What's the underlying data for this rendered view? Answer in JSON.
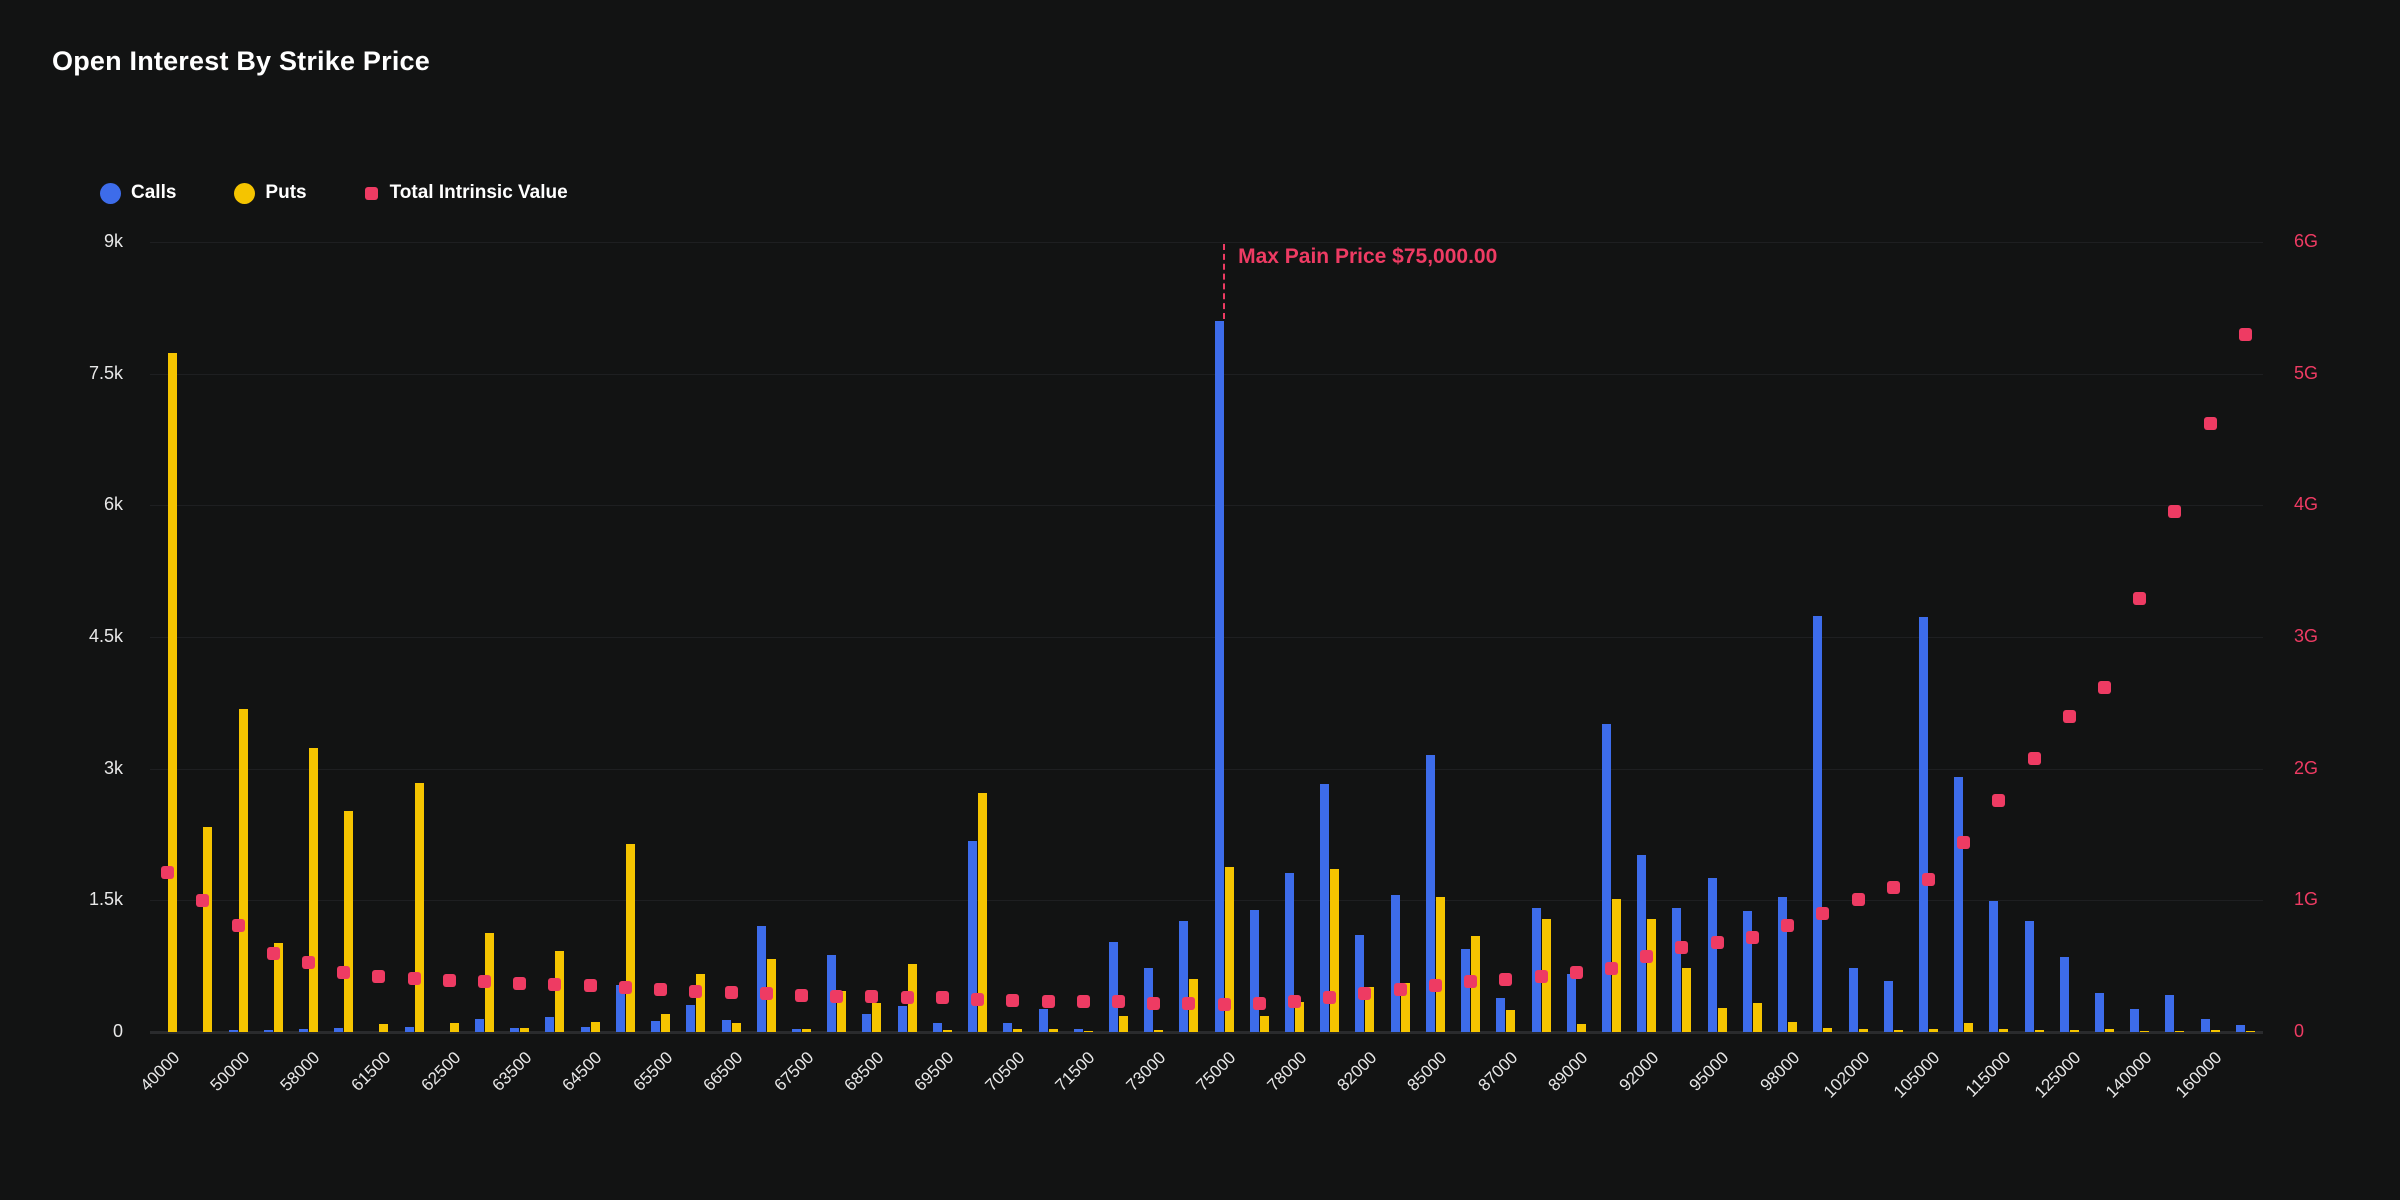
{
  "title": "Open Interest By Strike Price",
  "legend": {
    "calls": "Calls",
    "puts": "Puts",
    "intrinsic": "Total Intrinsic Value"
  },
  "colors": {
    "background": "#121313",
    "calls": "#3d6cea",
    "puts": "#f5c400",
    "intrinsic": "#ee3b63",
    "gridline": "#1e1f21",
    "axis_text": "#e8e8e8"
  },
  "annotation": {
    "max_pain_label": "Max Pain Price $75,000.00",
    "max_pain_category_index": 30
  },
  "chart_data": {
    "type": "bar",
    "title": "Open Interest By Strike Price",
    "left_axis_ticks": [
      "9k",
      "7.5k",
      "6k",
      "4.5k",
      "3k",
      "1.5k",
      "0"
    ],
    "right_axis_ticks": [
      "6G",
      "5G",
      "4G",
      "3G",
      "2G",
      "1G",
      "0"
    ],
    "left_axis_max_k": 9,
    "right_axis_max_G": 6,
    "grid": true,
    "legend_position": "top-left",
    "x_labels_shown_every_other_category": true,
    "categories": [
      "40000",
      "",
      "50000",
      "",
      "58000",
      "",
      "61500",
      "",
      "62500",
      "",
      "63500",
      "",
      "64500",
      "",
      "65500",
      "",
      "66500",
      "",
      "67500",
      "",
      "68500",
      "",
      "69500",
      "",
      "70500",
      "",
      "71500",
      "",
      "73000",
      "",
      "75000",
      "",
      "78000",
      "",
      "82000",
      "",
      "85000",
      "",
      "87000",
      "",
      "89000",
      "",
      "92000",
      "",
      "95000",
      "",
      "98000",
      "",
      "102000",
      "",
      "105000",
      "",
      "115000",
      "",
      "125000",
      "",
      "140000",
      "",
      "160000",
      ""
    ],
    "series": [
      {
        "name": "Calls",
        "type": "bar",
        "unit": "k (left axis, thousands of contracts)",
        "values": [
          0,
          0,
          0.02,
          0.02,
          0.03,
          0.05,
          0,
          0.06,
          0,
          0.15,
          0.05,
          0.17,
          0.06,
          0.54,
          0.12,
          0.31,
          0.14,
          1.21,
          0.04,
          0.88,
          0.21,
          0.3,
          0.1,
          2.18,
          0.1,
          0.26,
          0.03,
          1.02,
          0.73,
          1.27,
          8.1,
          1.39,
          1.81,
          2.82,
          1.11,
          1.56,
          3.16,
          0.95,
          0.39,
          1.41,
          0.66,
          3.51,
          2.02,
          1.41,
          1.76,
          1.38,
          1.54,
          4.74,
          0.73,
          0.58,
          4.73,
          2.91,
          1.49,
          1.27,
          0.85,
          0.44,
          0.26,
          0.42,
          0.15,
          0.08
        ]
      },
      {
        "name": "Puts",
        "type": "bar",
        "unit": "k (left axis, thousands of contracts)",
        "values": [
          7.73,
          2.34,
          3.68,
          1.01,
          3.24,
          2.52,
          0.09,
          2.84,
          0.1,
          1.13,
          0.05,
          0.92,
          0.11,
          2.14,
          0.21,
          0.66,
          0.1,
          0.83,
          0.03,
          0.47,
          0.33,
          0.78,
          0.02,
          2.72,
          0.03,
          0.04,
          0.01,
          0.18,
          0.02,
          0.6,
          1.88,
          0.18,
          0.34,
          1.86,
          0.51,
          0.56,
          1.54,
          1.09,
          0.25,
          1.29,
          0.09,
          1.51,
          1.29,
          0.73,
          0.27,
          0.33,
          0.11,
          0.05,
          0.03,
          0.02,
          0.04,
          0.1,
          0.03,
          0.02,
          0.02,
          0.04,
          0.01,
          0.01,
          0.02,
          0.01
        ]
      },
      {
        "name": "Total Intrinsic Value",
        "type": "scatter",
        "unit": "G (right axis, billions)",
        "values": [
          1.21,
          1.0,
          0.81,
          0.6,
          0.53,
          0.45,
          0.42,
          0.41,
          0.39,
          0.38,
          0.37,
          0.36,
          0.35,
          0.34,
          0.32,
          0.31,
          0.3,
          0.29,
          0.28,
          0.27,
          0.27,
          0.26,
          0.26,
          0.25,
          0.24,
          0.23,
          0.23,
          0.23,
          0.22,
          0.22,
          0.21,
          0.22,
          0.23,
          0.26,
          0.29,
          0.32,
          0.35,
          0.38,
          0.4,
          0.42,
          0.45,
          0.48,
          0.57,
          0.64,
          0.68,
          0.72,
          0.81,
          0.9,
          1.01,
          1.1,
          1.16,
          1.44,
          1.76,
          2.08,
          2.4,
          2.62,
          3.29,
          3.95,
          4.62,
          5.3
        ]
      }
    ]
  }
}
